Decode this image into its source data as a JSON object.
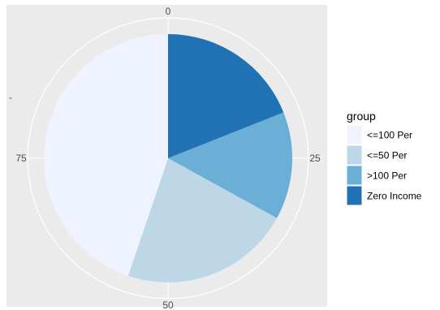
{
  "chart_data": {
    "type": "pie",
    "categories": [
      "<=100 Per",
      "<=50 Per",
      ">100 Per",
      "Zero Income"
    ],
    "values": [
      44.8,
      22.2,
      14.0,
      19.0
    ],
    "colors": [
      "#eff3ff",
      "#bdd7e7",
      "#6baed6",
      "#2171b5"
    ],
    "slice_order": [
      "Zero Income",
      ">100 Per",
      "<=50 Per",
      "<=100 Per"
    ],
    "total": 100,
    "ticks": [
      {
        "value": 0,
        "label": "0"
      },
      {
        "value": 25,
        "label": "25"
      },
      {
        "value": 50,
        "label": "50"
      },
      {
        "value": 75,
        "label": "75"
      }
    ],
    "y_tick_mark": "-",
    "legend": {
      "title": "group",
      "position": "right",
      "items": [
        "<=100 Per",
        "<=50 Per",
        ">100 Per",
        "Zero Income"
      ]
    },
    "panel_background": "#ebebeb",
    "grid_color": "#ffffff",
    "grid": true
  }
}
